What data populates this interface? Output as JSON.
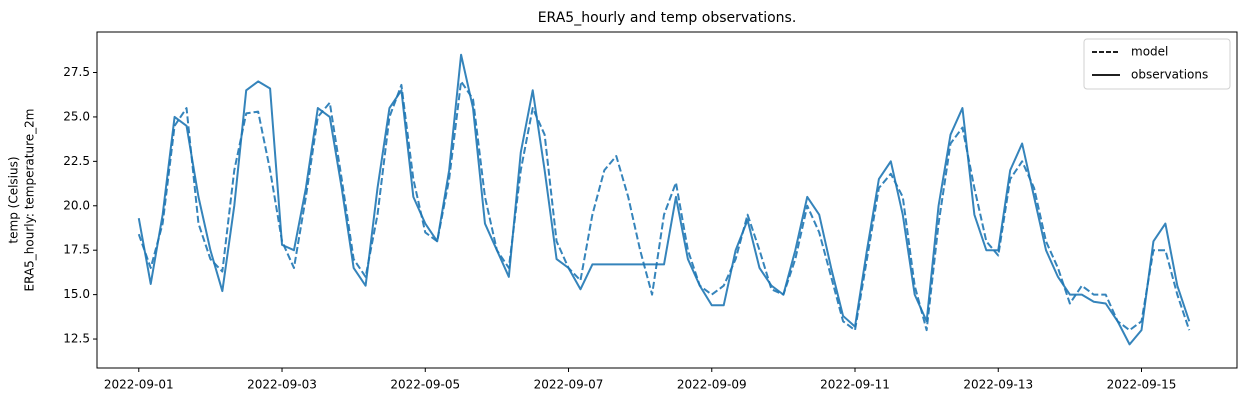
{
  "chart_data": {
    "type": "line",
    "title": "ERA5_hourly and temp observations.",
    "ylabel": [
      "temp (Celsius)",
      "ERA5_hourly: temperature_2m"
    ],
    "x": [
      "2022-09-01T00:00",
      "2022-09-01T04:00",
      "2022-09-01T08:00",
      "2022-09-01T12:00",
      "2022-09-01T16:00",
      "2022-09-01T20:00",
      "2022-09-02T00:00",
      "2022-09-02T04:00",
      "2022-09-02T08:00",
      "2022-09-02T12:00",
      "2022-09-02T16:00",
      "2022-09-02T20:00",
      "2022-09-03T00:00",
      "2022-09-03T04:00",
      "2022-09-03T08:00",
      "2022-09-03T12:00",
      "2022-09-03T16:00",
      "2022-09-03T20:00",
      "2022-09-04T00:00",
      "2022-09-04T04:00",
      "2022-09-04T08:00",
      "2022-09-04T12:00",
      "2022-09-04T16:00",
      "2022-09-04T20:00",
      "2022-09-05T00:00",
      "2022-09-05T04:00",
      "2022-09-05T08:00",
      "2022-09-05T12:00",
      "2022-09-05T16:00",
      "2022-09-05T20:00",
      "2022-09-06T00:00",
      "2022-09-06T04:00",
      "2022-09-06T08:00",
      "2022-09-06T12:00",
      "2022-09-06T16:00",
      "2022-09-06T20:00",
      "2022-09-07T00:00",
      "2022-09-07T04:00",
      "2022-09-07T08:00",
      "2022-09-07T12:00",
      "2022-09-07T16:00",
      "2022-09-07T20:00",
      "2022-09-08T00:00",
      "2022-09-08T04:00",
      "2022-09-08T08:00",
      "2022-09-08T12:00",
      "2022-09-08T16:00",
      "2022-09-08T20:00",
      "2022-09-09T00:00",
      "2022-09-09T04:00",
      "2022-09-09T08:00",
      "2022-09-09T12:00",
      "2022-09-09T16:00",
      "2022-09-09T20:00",
      "2022-09-10T00:00",
      "2022-09-10T04:00",
      "2022-09-10T08:00",
      "2022-09-10T12:00",
      "2022-09-10T16:00",
      "2022-09-10T20:00",
      "2022-09-11T00:00",
      "2022-09-11T04:00",
      "2022-09-11T08:00",
      "2022-09-11T12:00",
      "2022-09-11T16:00",
      "2022-09-11T20:00",
      "2022-09-12T00:00",
      "2022-09-12T04:00",
      "2022-09-12T08:00",
      "2022-09-12T12:00",
      "2022-09-12T16:00",
      "2022-09-12T20:00",
      "2022-09-13T00:00",
      "2022-09-13T04:00",
      "2022-09-13T08:00",
      "2022-09-13T12:00",
      "2022-09-13T16:00",
      "2022-09-13T20:00",
      "2022-09-14T00:00",
      "2022-09-14T04:00",
      "2022-09-14T08:00",
      "2022-09-14T12:00",
      "2022-09-14T16:00",
      "2022-09-14T20:00",
      "2022-09-15T00:00",
      "2022-09-15T04:00",
      "2022-09-15T08:00",
      "2022-09-15T12:00",
      "2022-09-15T16:00"
    ],
    "series": [
      {
        "name": "model",
        "color": "#1f77b4",
        "linestyle": "dashed",
        "values": [
          18.4,
          16.5,
          19.0,
          24.5,
          25.5,
          19.0,
          17.0,
          16.3,
          22.0,
          25.2,
          25.3,
          22.0,
          18.0,
          16.5,
          20.5,
          25.0,
          25.8,
          21.5,
          17.0,
          16.0,
          19.5,
          25.0,
          26.8,
          21.5,
          18.5,
          18.0,
          21.5,
          27.0,
          26.0,
          20.5,
          17.5,
          16.5,
          22.0,
          25.5,
          24.0,
          18.0,
          16.5,
          15.8,
          19.5,
          22.0,
          22.8,
          20.5,
          17.5,
          15.0,
          19.5,
          21.3,
          17.5,
          15.5,
          15.0,
          15.5,
          17.0,
          19.5,
          17.5,
          15.3,
          15.0,
          17.0,
          20.0,
          18.5,
          16.0,
          13.5,
          13.0,
          17.0,
          21.0,
          21.8,
          20.5,
          15.5,
          13.0,
          19.0,
          23.5,
          24.4,
          21.0,
          18.0,
          17.2,
          21.5,
          22.5,
          21.0,
          18.0,
          16.5,
          14.5,
          15.5,
          15.0,
          15.0,
          13.5,
          13.0,
          13.5,
          17.5,
          17.5,
          15.0,
          13.0
        ]
      },
      {
        "name": "observations",
        "color": "#1f77b4",
        "linestyle": "solid",
        "values": [
          19.3,
          15.6,
          19.5,
          25.0,
          24.5,
          20.5,
          17.5,
          15.2,
          20.0,
          26.5,
          27.0,
          26.6,
          17.8,
          17.5,
          21.0,
          25.5,
          25.0,
          21.0,
          16.5,
          15.5,
          21.0,
          25.5,
          26.5,
          20.5,
          19.0,
          18.0,
          22.0,
          28.5,
          25.5,
          19.0,
          17.5,
          16.0,
          23.0,
          26.5,
          22.0,
          17.0,
          16.5,
          15.3,
          16.7,
          16.7,
          16.7,
          16.7,
          16.7,
          16.7,
          16.7,
          20.5,
          17.0,
          15.5,
          14.4,
          14.4,
          17.5,
          19.2,
          16.5,
          15.5,
          15.0,
          17.5,
          20.5,
          19.5,
          16.5,
          13.8,
          13.2,
          17.5,
          21.5,
          22.5,
          19.5,
          15.0,
          13.5,
          20.0,
          24.0,
          25.5,
          19.5,
          17.5,
          17.5,
          22.0,
          23.5,
          20.5,
          17.5,
          16.0,
          15.0,
          15.0,
          14.6,
          14.5,
          13.5,
          12.2,
          13.0,
          18.0,
          19.0,
          15.5,
          13.5
        ]
      }
    ],
    "xlim": [
      "2022-08-31T10:00",
      "2022-09-16T08:00"
    ],
    "xticks": [
      "2022-09-01",
      "2022-09-03",
      "2022-09-05",
      "2022-09-07",
      "2022-09-09",
      "2022-09-11",
      "2022-09-13",
      "2022-09-15"
    ],
    "ylim": [
      10.87,
      29.78
    ],
    "yticks": [
      12.5,
      {
        "value": 15,
        "label": "15.0"
      },
      17.5,
      {
        "value": 20,
        "label": "20.0"
      },
      22.5,
      {
        "value": 25,
        "label": "25.0"
      },
      27.5
    ],
    "grid": false,
    "legend": "upper right",
    "legend_color": "#000000"
  }
}
